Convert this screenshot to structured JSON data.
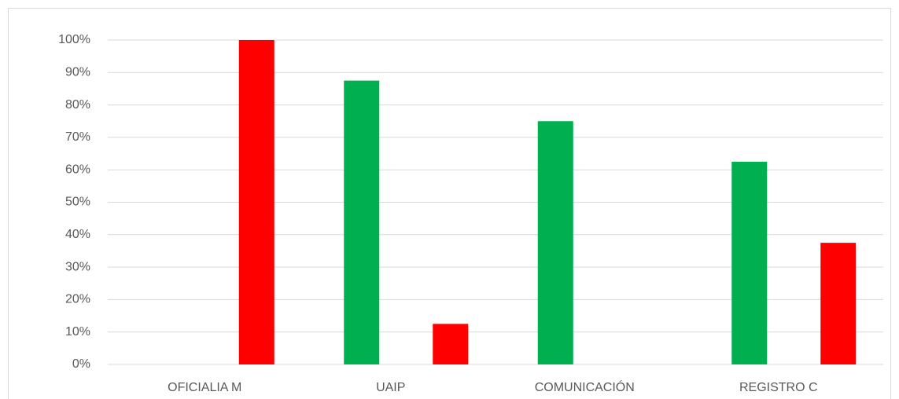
{
  "chart_data": {
    "type": "bar",
    "categories": [
      "OFICIALIA M",
      "UAIP",
      "COMUNICACIÓN",
      "REGISTRO C"
    ],
    "series": [
      {
        "color": "#00b050",
        "values": [
          0,
          87.5,
          75,
          62.5
        ]
      },
      {
        "color": "#ff0000",
        "values": [
          100,
          12.5,
          0,
          37.5
        ]
      }
    ],
    "ylim": [
      0,
      100
    ],
    "yticks": [
      {
        "value": 0,
        "label": "0%"
      },
      {
        "value": 10,
        "label": "10%"
      },
      {
        "value": 20,
        "label": "20%"
      },
      {
        "value": 30,
        "label": "30%"
      },
      {
        "value": 40,
        "label": "40%"
      },
      {
        "value": 50,
        "label": "50%"
      },
      {
        "value": 60,
        "label": "60%"
      },
      {
        "value": 70,
        "label": "70%"
      },
      {
        "value": 80,
        "label": "80%"
      },
      {
        "value": 90,
        "label": "90%"
      },
      {
        "value": 100,
        "label": "100%"
      }
    ],
    "grid": true
  }
}
